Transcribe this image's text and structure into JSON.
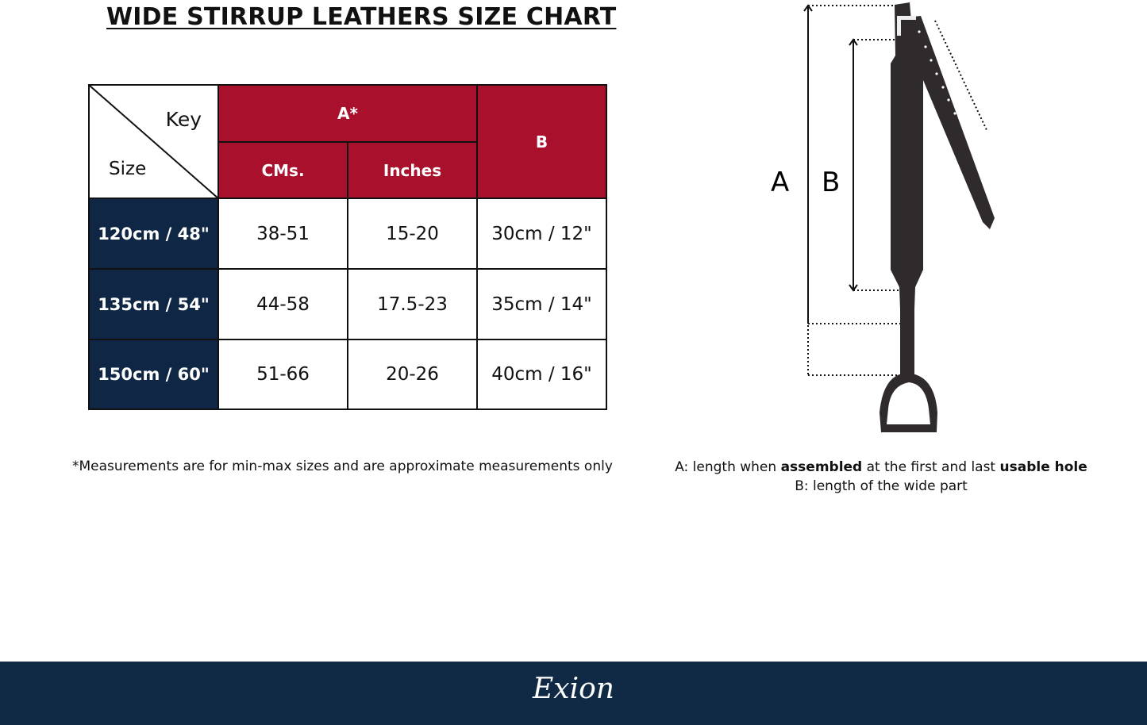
{
  "title": "WIDE STIRRUP LEATHERS  SIZE CHART",
  "table": {
    "key_label": "Key",
    "size_label": "Size",
    "group_a": "A*",
    "col_cms": "CMs.",
    "col_inches": "Inches",
    "col_b": "B",
    "rows": [
      {
        "size": "120cm / 48\"",
        "cms": "38-51",
        "inches": "15-20",
        "b": "30cm / 12\""
      },
      {
        "size": "135cm / 54\"",
        "cms": "44-58",
        "inches": "17.5-23",
        "b": "35cm / 14\""
      },
      {
        "size": "150cm / 60\"",
        "cms": "51-66",
        "inches": "20-26",
        "b": "40cm / 16\""
      }
    ]
  },
  "footnote": "*Measurements are for min-max sizes and are approximate measurements only",
  "diagram": {
    "label_a": "A",
    "label_b": "B",
    "caption_a_1": "A: length when ",
    "caption_a_bold1": "assembled",
    "caption_a_2": " at the first and last ",
    "caption_a_bold2": "usable hole",
    "caption_b": "B: length of the wide part"
  },
  "footer": {
    "logo": "Exion"
  },
  "colors": {
    "header_red": "#a8102b",
    "size_navy": "#0f2744",
    "footer_navy": "#102a45",
    "leather": "#2f2a2b"
  }
}
